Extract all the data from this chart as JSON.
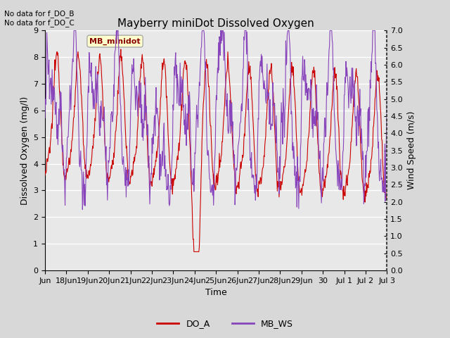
{
  "title": "Mayberry miniDot Dissolved Oxygen",
  "xlabel": "Time",
  "ylabel_left": "Dissolved Oxygen (mg/l)",
  "ylabel_right": "Wind Speed (m/s)",
  "annotation_text": "No data for f_DO_B\nNo data for f_DO_C",
  "legend_label_do": "DO_A",
  "legend_label_ws": "MB_WS",
  "box_label": "MB_minidot",
  "do_color": "#cc0000",
  "ws_color": "#8844bb",
  "ylim_left": [
    0.0,
    9.0
  ],
  "ylim_right": [
    0.0,
    7.0
  ],
  "yticks_left": [
    0.0,
    1.0,
    2.0,
    3.0,
    4.0,
    5.0,
    6.0,
    7.0,
    8.0,
    9.0
  ],
  "yticks_right": [
    0.0,
    0.5,
    1.0,
    1.5,
    2.0,
    2.5,
    3.0,
    3.5,
    4.0,
    4.5,
    5.0,
    5.5,
    6.0,
    6.5,
    7.0
  ],
  "background_color": "#d8d8d8",
  "plot_bg_color": "#e8e8e8",
  "grid_color": "#ffffff",
  "figsize": [
    6.4,
    4.8
  ],
  "dpi": 100,
  "x_tick_labels": [
    "Jun",
    "18Jun",
    "19Jun",
    "20Jun",
    "21Jun",
    "22Jun",
    "23Jun",
    "24Jun",
    "25Jun",
    "26Jun",
    "27Jun",
    "28Jun",
    "29Jun",
    "30",
    "Jul 1",
    "Jul 2",
    "Jul 3"
  ],
  "x_tick_positions": [
    0,
    1,
    2,
    3,
    4,
    5,
    6,
    7,
    8,
    9,
    10,
    11,
    12,
    13,
    14,
    15,
    16
  ]
}
